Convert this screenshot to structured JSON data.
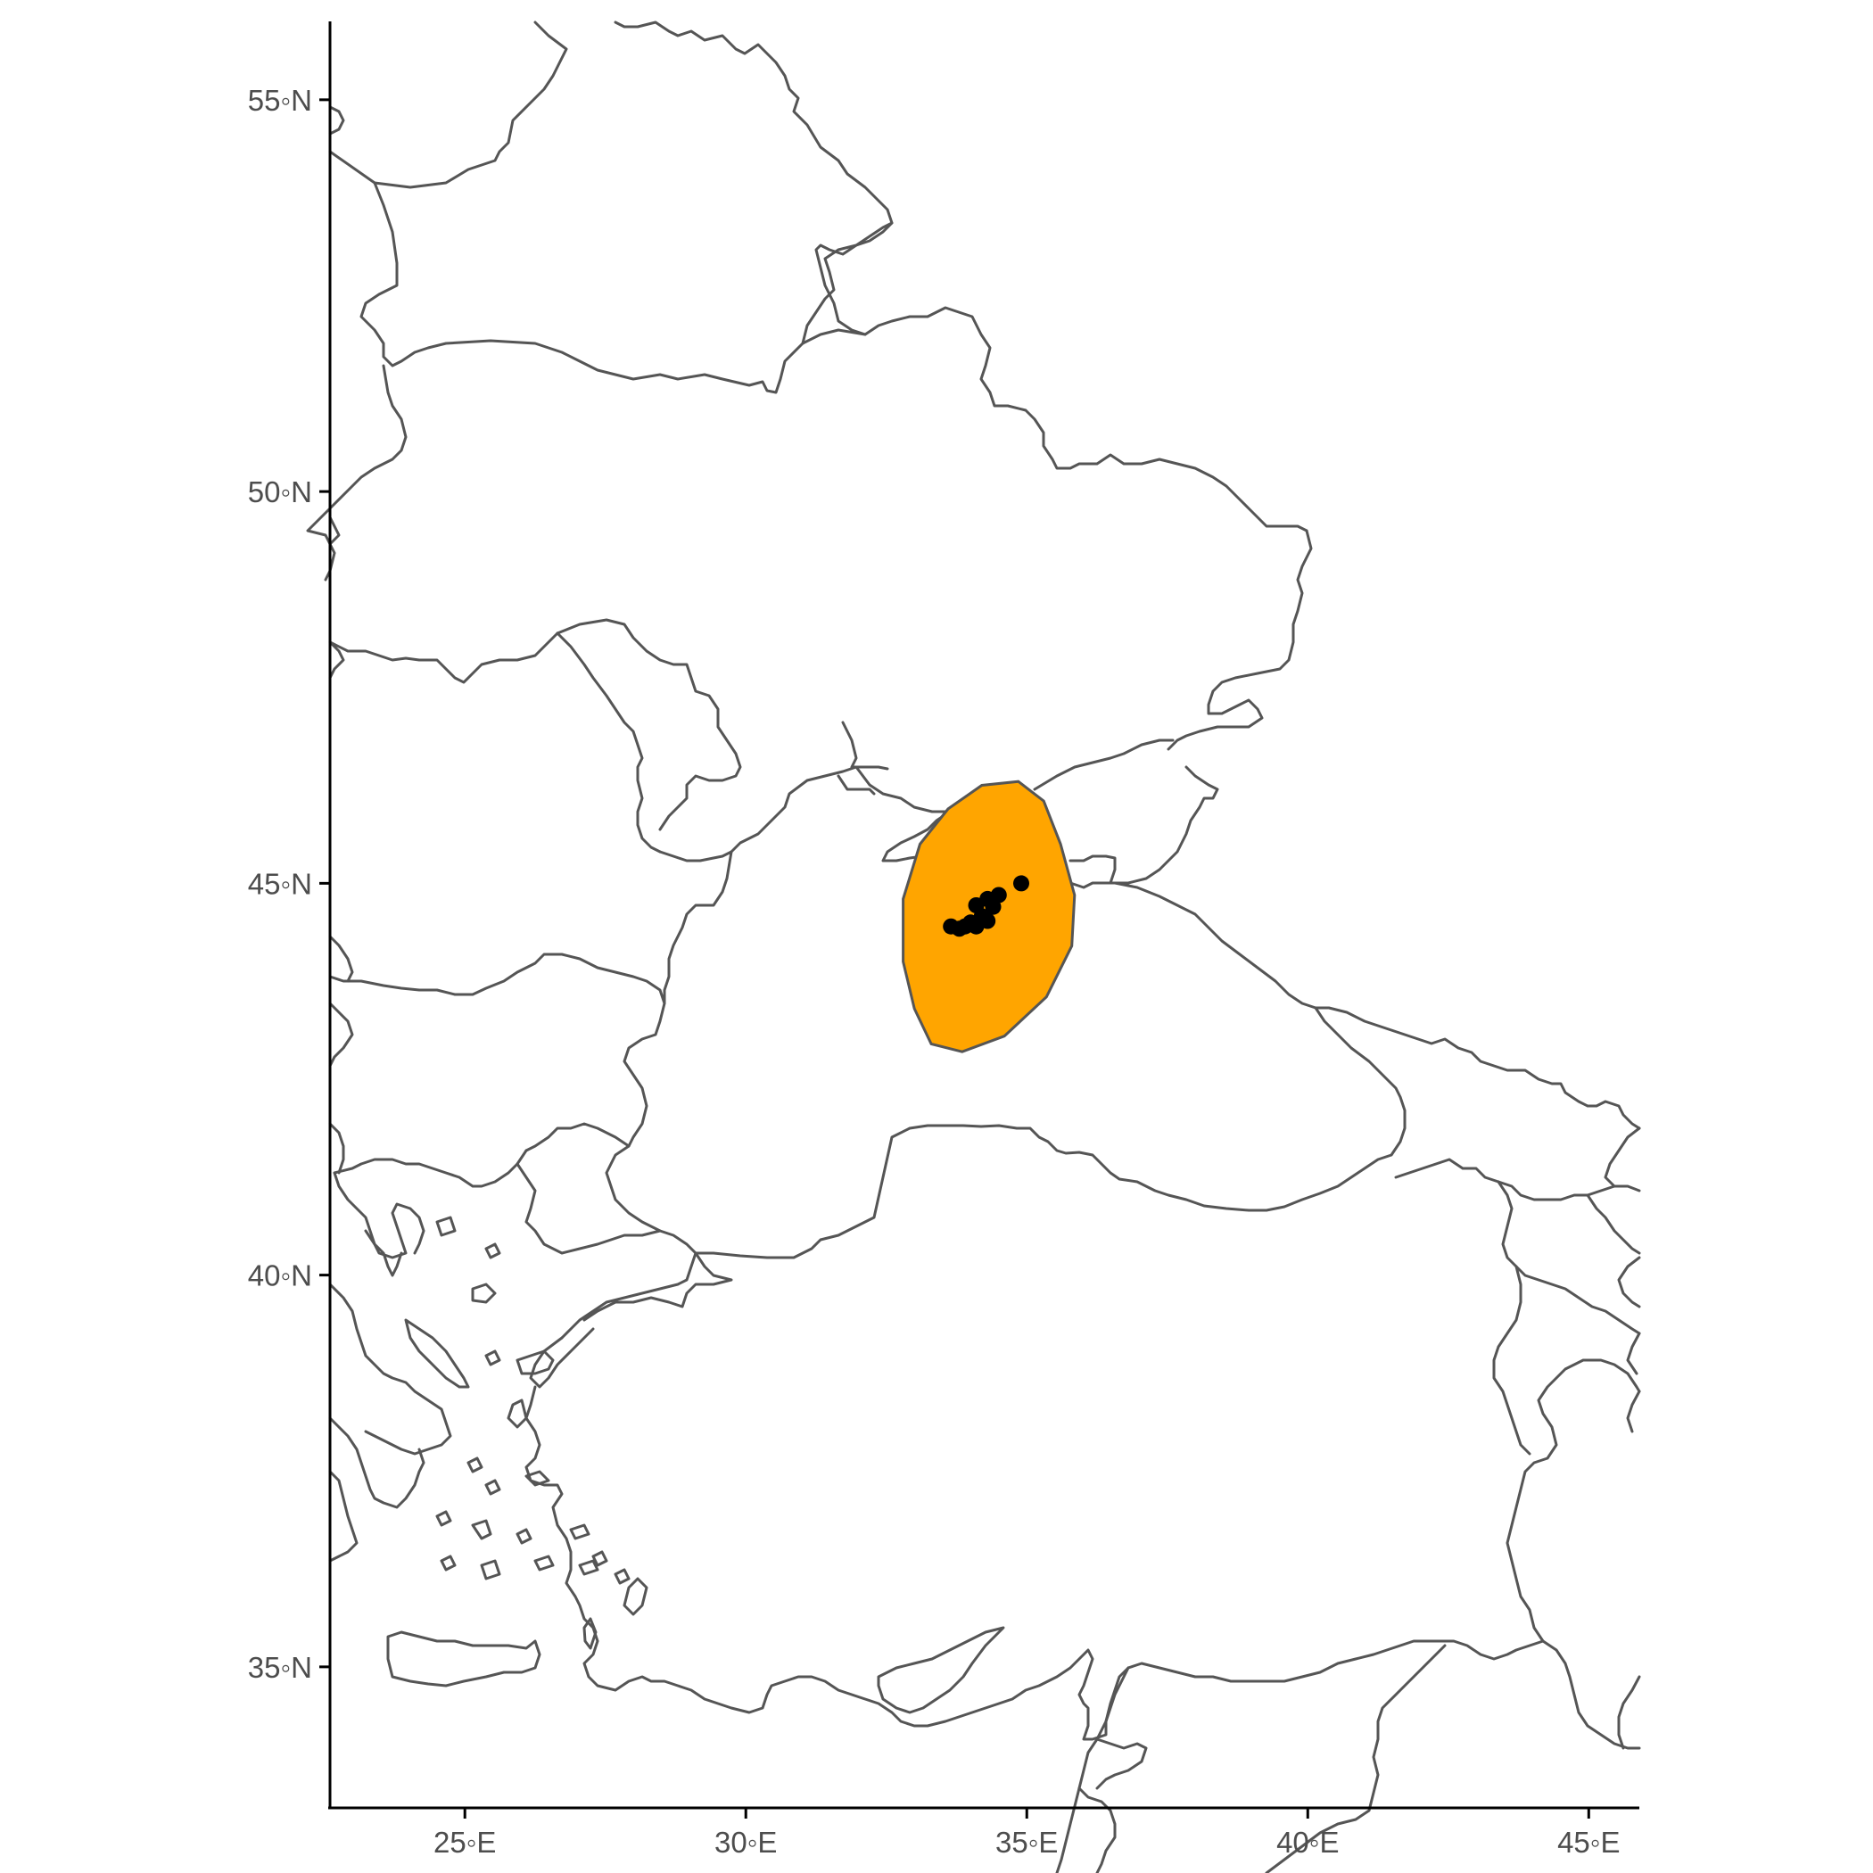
{
  "map": {
    "projection": "equirectangular",
    "x_range": [
      22.6,
      45.9
    ],
    "y_range": [
      33.2,
      56.0
    ],
    "x_ticks": [
      {
        "value": 25,
        "label": "25◦E"
      },
      {
        "value": 30,
        "label": "30◦E"
      },
      {
        "value": 35,
        "label": "35◦E"
      },
      {
        "value": 40,
        "label": "40◦E"
      },
      {
        "value": 45,
        "label": "45◦E"
      }
    ],
    "y_ticks": [
      {
        "value": 55,
        "label": "55◦N"
      },
      {
        "value": 50,
        "label": "50◦N"
      },
      {
        "value": 45,
        "label": "45◦N"
      },
      {
        "value": 40,
        "label": "40◦N"
      },
      {
        "value": 35,
        "label": "35◦N"
      }
    ],
    "hull_color": "#FFA500",
    "border_color": "#555555",
    "point_color": "#000000",
    "hull_polygon": [
      [
        34.85,
        46.3
      ],
      [
        35.3,
        46.05
      ],
      [
        35.6,
        45.5
      ],
      [
        35.85,
        44.85
      ],
      [
        35.8,
        44.2
      ],
      [
        35.35,
        43.55
      ],
      [
        34.6,
        43.05
      ],
      [
        33.85,
        42.85
      ],
      [
        33.3,
        42.95
      ],
      [
        33.0,
        43.4
      ],
      [
        32.8,
        44.0
      ],
      [
        32.8,
        44.8
      ],
      [
        33.1,
        45.5
      ],
      [
        33.6,
        45.95
      ],
      [
        34.2,
        46.25
      ]
    ],
    "occurrences": [
      [
        34.9,
        45.0
      ],
      [
        34.5,
        44.85
      ],
      [
        34.3,
        44.8
      ],
      [
        34.4,
        44.7
      ],
      [
        34.1,
        44.72
      ],
      [
        34.2,
        44.58
      ],
      [
        34.3,
        44.52
      ],
      [
        34.0,
        44.5
      ],
      [
        33.9,
        44.45
      ],
      [
        34.1,
        44.45
      ],
      [
        33.65,
        44.45
      ],
      [
        33.8,
        44.42
      ]
    ]
  }
}
